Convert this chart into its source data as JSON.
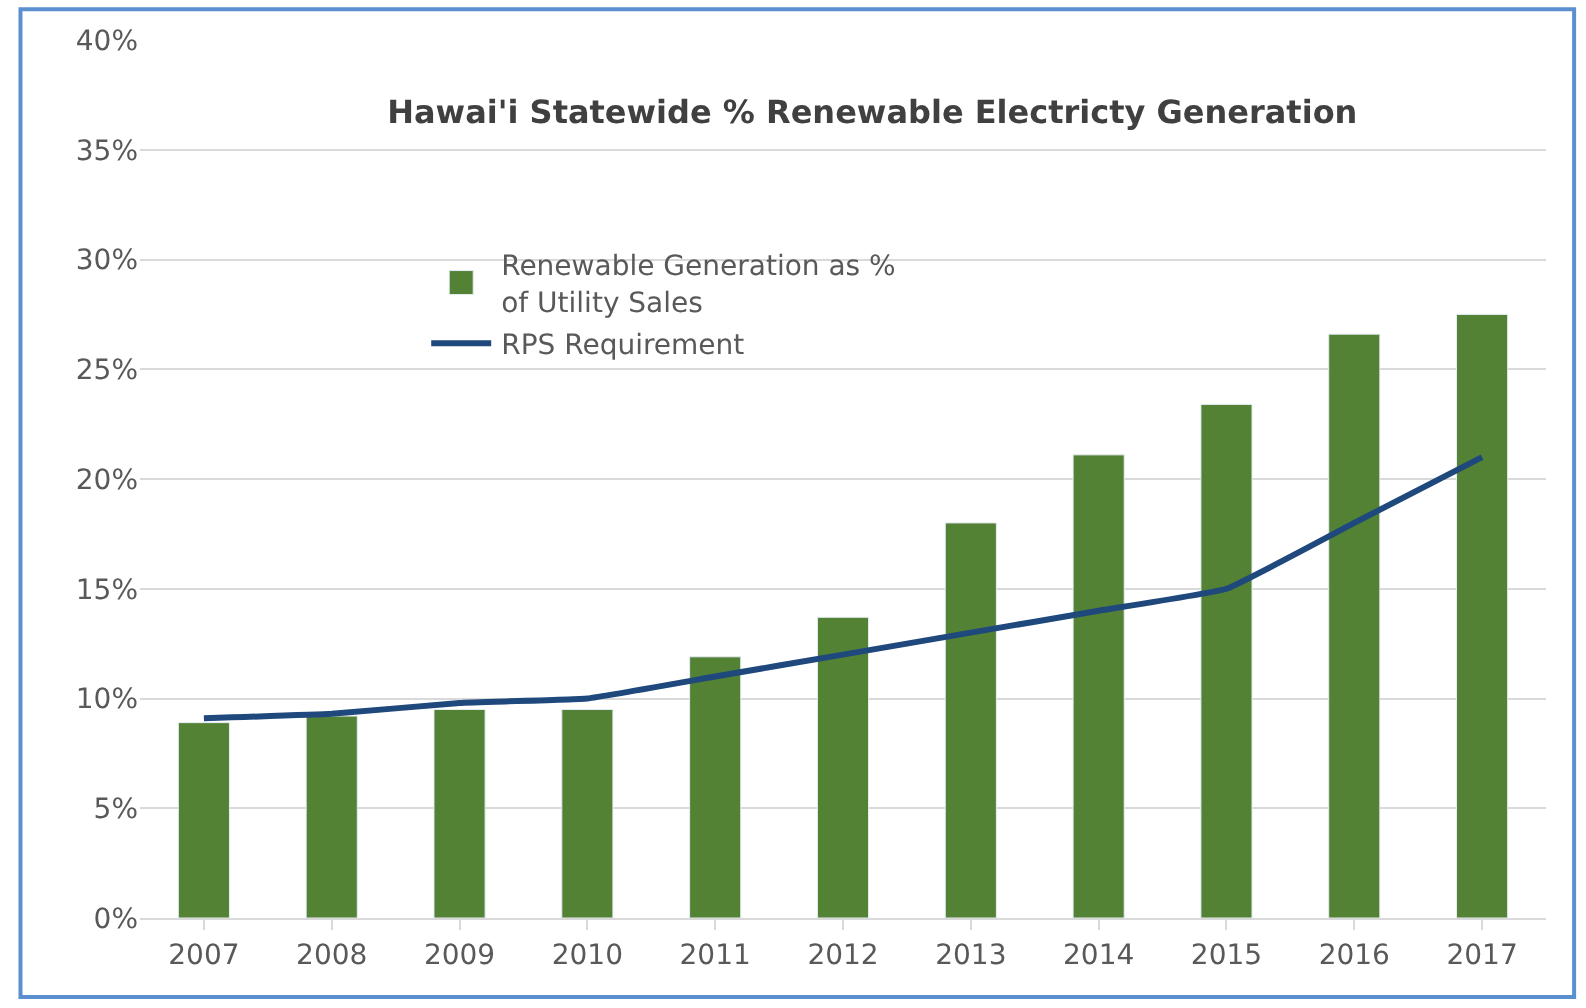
{
  "chart_data": {
    "type": "bar",
    "title": "Hawai'i Statewide % Renewable Electricty Generation",
    "categories": [
      "2007",
      "2008",
      "2009",
      "2010",
      "2011",
      "2012",
      "2013",
      "2014",
      "2015",
      "2016",
      "2017"
    ],
    "series": [
      {
        "name": "Renewable Generation as % of Utility Sales",
        "color": "#548235",
        "values": [
          8.9,
          9.2,
          9.5,
          9.5,
          11.9,
          13.7,
          18.0,
          21.1,
          23.4,
          26.6,
          27.5
        ]
      },
      {
        "name": "RPS Requirement",
        "type": "line",
        "color": "#1f497d",
        "values": [
          9.1,
          9.3,
          9.8,
          10.0,
          11.0,
          12.0,
          13.0,
          14.0,
          15.0,
          18.0,
          21.0
        ]
      }
    ],
    "ylim": [
      0,
      40
    ],
    "yticks": [
      {
        "value": 0,
        "label": "0%"
      },
      {
        "value": 5,
        "label": "5%"
      },
      {
        "value": 10,
        "label": "10%"
      },
      {
        "value": 15,
        "label": "15%"
      },
      {
        "value": 20,
        "label": "20%"
      },
      {
        "value": 25,
        "label": "25%"
      },
      {
        "value": 30,
        "label": "30%"
      },
      {
        "value": 35,
        "label": "35%"
      },
      {
        "value": 40,
        "label": "40%"
      }
    ],
    "grid": "y",
    "legend": "top left",
    "marker": "none",
    "line_style": "solid"
  }
}
